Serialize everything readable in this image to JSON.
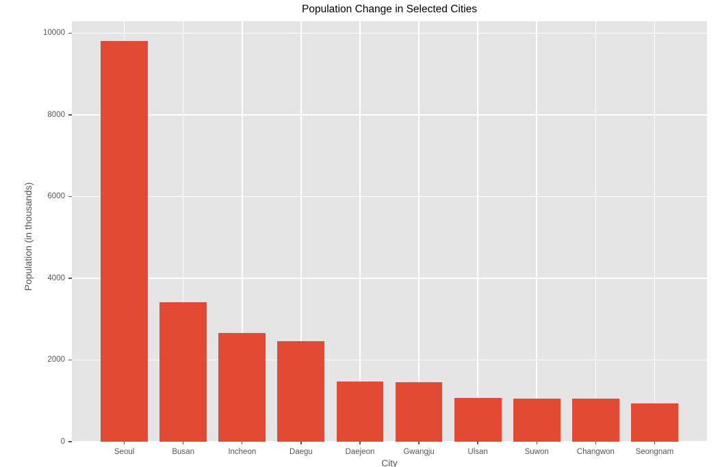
{
  "chart_data": {
    "type": "bar",
    "title": "Population Change in Selected Cities",
    "xlabel": "City",
    "ylabel": "Population (in thousands)",
    "categories": [
      "Seoul",
      "Busan",
      "Incheon",
      "Daegu",
      "Daejeon",
      "Gwangju",
      "Ulsan",
      "Suwon",
      "Changwon",
      "Seongnam"
    ],
    "values": [
      9800,
      3415,
      2660,
      2455,
      1480,
      1455,
      1070,
      1050,
      1050,
      940
    ],
    "yticks": [
      0,
      2000,
      4000,
      6000,
      8000,
      10000
    ],
    "ylim": [
      0,
      10290
    ],
    "grid": true,
    "legend_visible": false,
    "colors": {
      "bar": "#e24a33",
      "plot_background": "#e5e5e5",
      "gridline": "#ffffff",
      "tick_text": "#555555",
      "title_text": "#000000",
      "figure_background": "#ffffff"
    }
  }
}
